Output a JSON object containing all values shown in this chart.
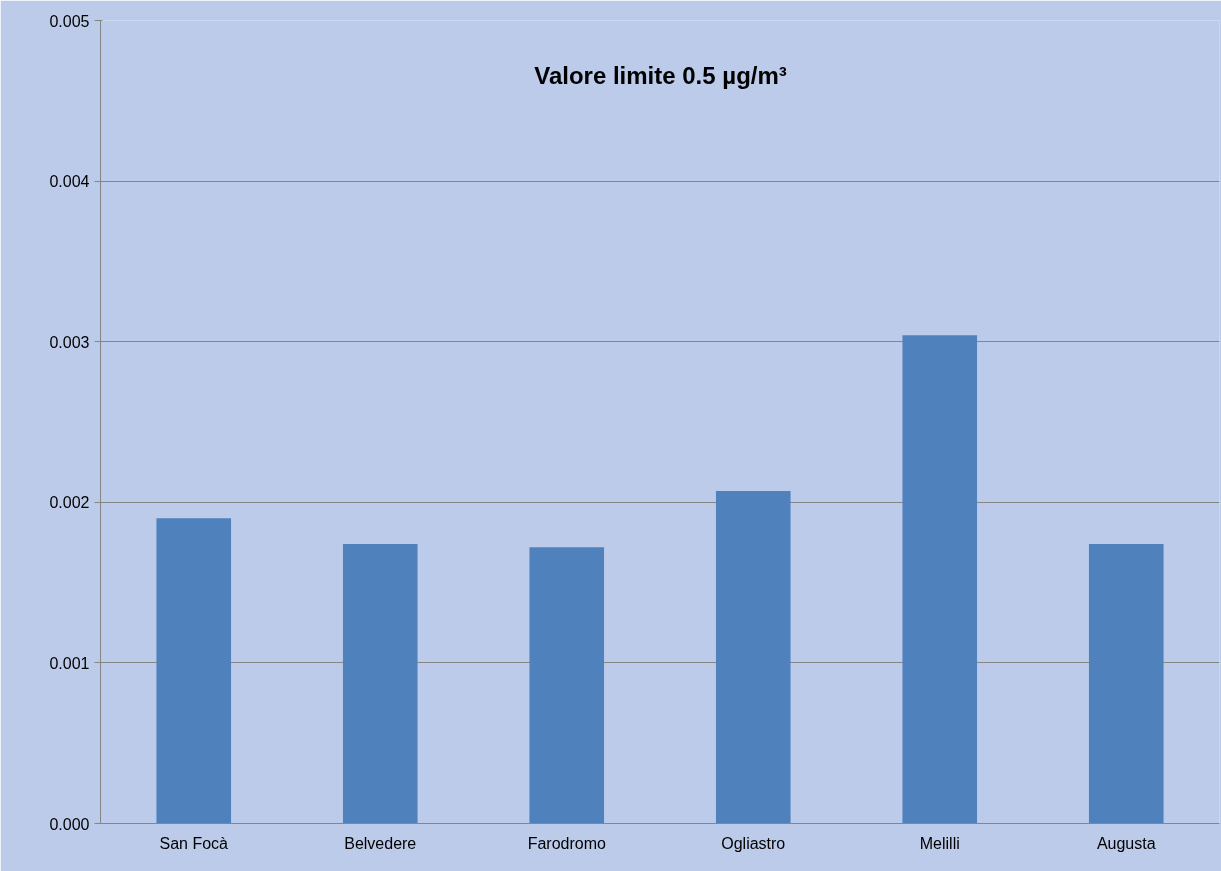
{
  "chart_data": {
    "type": "bar",
    "categories": [
      "San Focà",
      "Belvedere",
      "Farodromo",
      "Ogliastro",
      "Melilli",
      "Augusta"
    ],
    "values": [
      0.0019,
      0.00174,
      0.00172,
      0.00207,
      0.00304,
      0.00174
    ],
    "color": "#4f81bd",
    "ylim": [
      0,
      0.005
    ],
    "yticks": [
      {
        "value": 0,
        "label": "0.000"
      },
      {
        "value": 0.001,
        "label": "0.001"
      },
      {
        "value": 0.002,
        "label": "0.002"
      },
      {
        "value": 0.003,
        "label": "0.003"
      },
      {
        "value": 0.004,
        "label": "0.004"
      },
      {
        "value": 0.005,
        "label": "0.005"
      }
    ],
    "grid": "y",
    "annotations": [
      "Valore limite 0.5 µg/m³"
    ]
  }
}
